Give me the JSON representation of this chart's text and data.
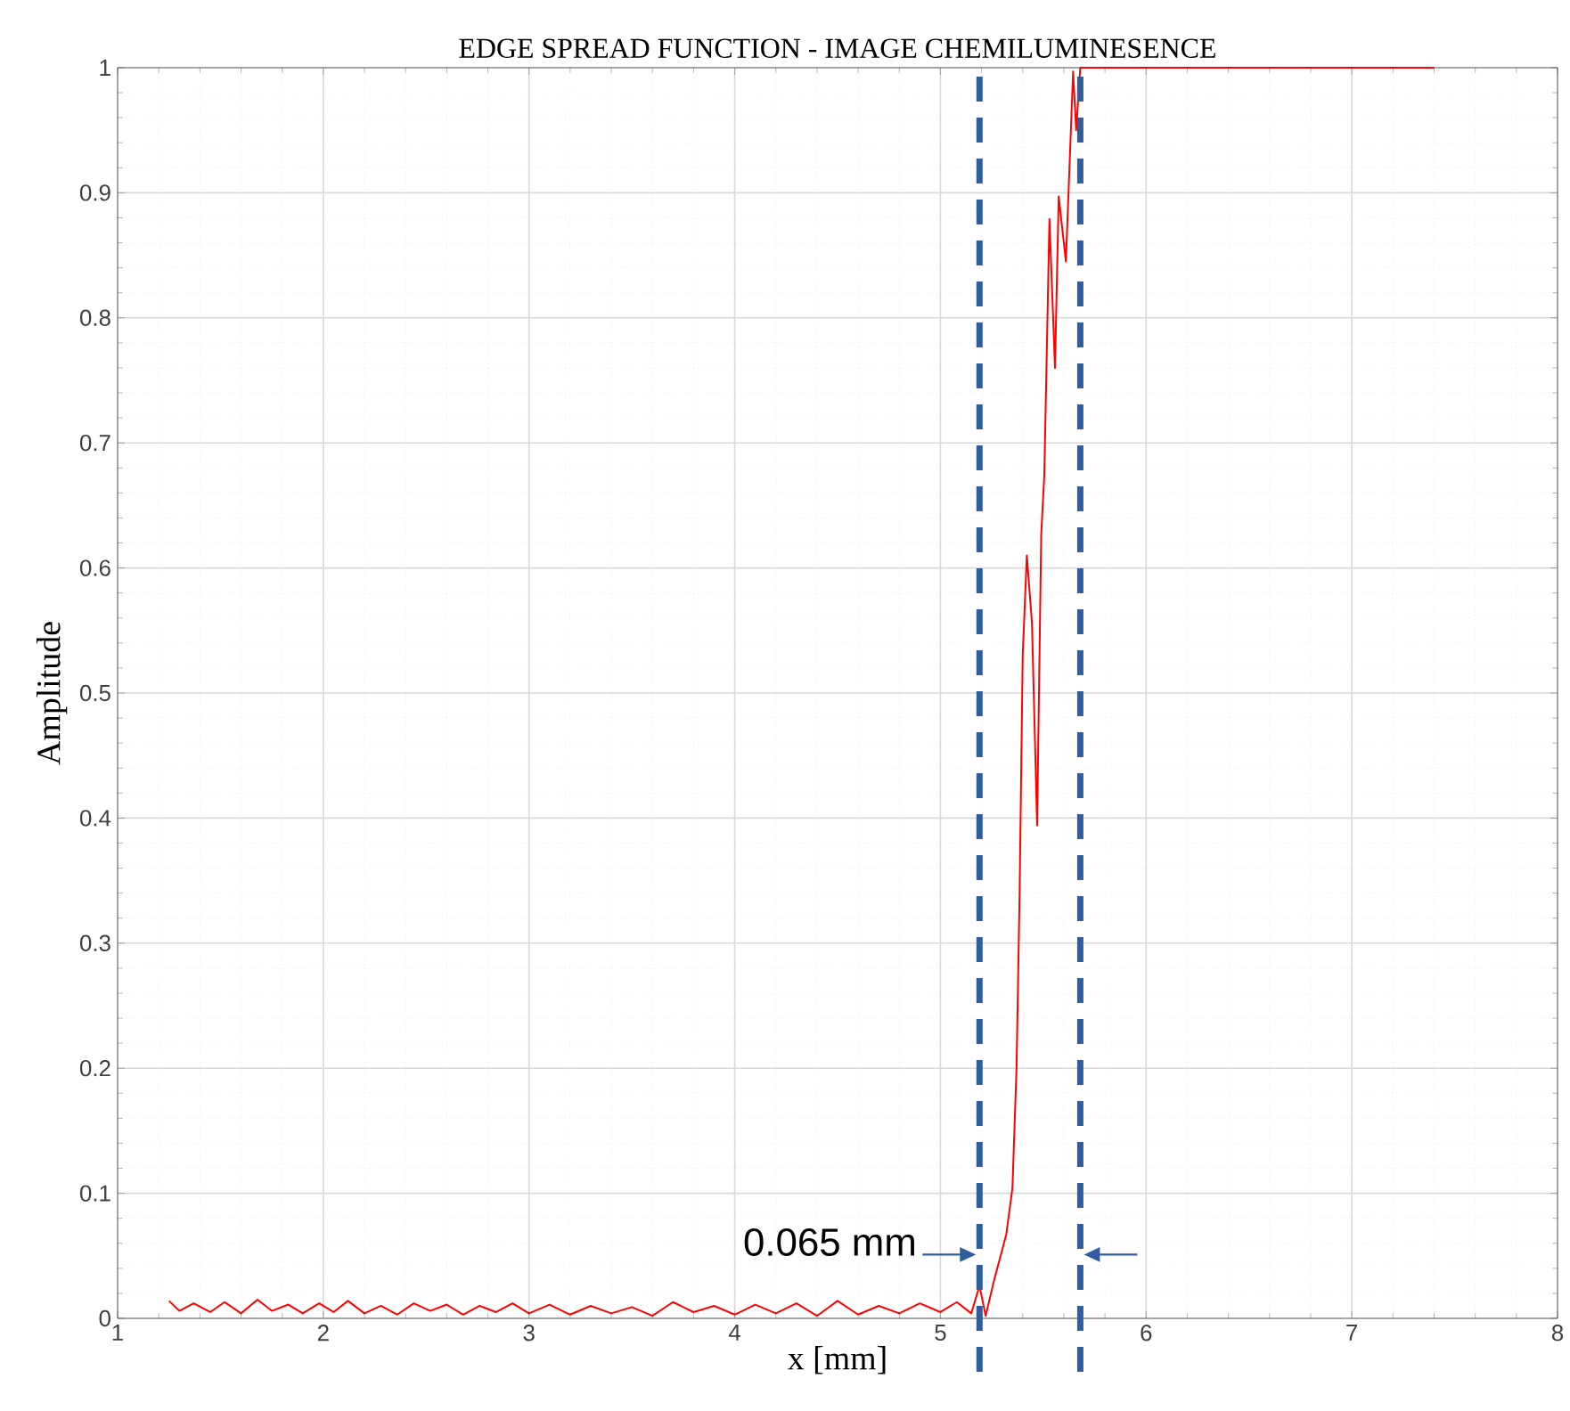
{
  "chart_data": {
    "type": "line",
    "title": "EDGE SPREAD FUNCTION - IMAGE CHEMILUMINESENCE",
    "xlabel": "x [mm]",
    "ylabel": "Amplitude",
    "xlim": [
      1,
      8
    ],
    "xticks": [
      1,
      2,
      3,
      4,
      5,
      6,
      7,
      8
    ],
    "ylim": [
      0,
      1
    ],
    "yticks": [
      0,
      0.1,
      0.2,
      0.3,
      0.4,
      0.5,
      0.6,
      0.7,
      0.8,
      0.9,
      1
    ],
    "grid": true,
    "marker": "none",
    "line_style": "solid",
    "series": [
      {
        "color": "#ff0000",
        "x": [
          1.25,
          1.3,
          1.37,
          1.45,
          1.52,
          1.6,
          1.68,
          1.75,
          1.83,
          1.9,
          1.98,
          2.05,
          2.12,
          2.2,
          2.28,
          2.36,
          2.44,
          2.52,
          2.6,
          2.68,
          2.76,
          2.84,
          2.92,
          3.0,
          3.1,
          3.2,
          3.3,
          3.4,
          3.5,
          3.6,
          3.7,
          3.8,
          3.9,
          4.0,
          4.1,
          4.2,
          4.3,
          4.4,
          4.5,
          4.6,
          4.7,
          4.8,
          4.9,
          5.0,
          5.08,
          5.15,
          5.19,
          5.22,
          5.26,
          5.32,
          5.35,
          5.37,
          5.385,
          5.4,
          5.42,
          5.445,
          5.47,
          5.49,
          5.505,
          5.53,
          5.557,
          5.575,
          5.61,
          5.645,
          5.66,
          5.68,
          6.0,
          7.0,
          7.4
        ],
        "values": [
          0.014,
          0.006,
          0.012,
          0.005,
          0.013,
          0.004,
          0.015,
          0.006,
          0.011,
          0.004,
          0.012,
          0.005,
          0.014,
          0.004,
          0.01,
          0.003,
          0.012,
          0.006,
          0.011,
          0.003,
          0.01,
          0.005,
          0.012,
          0.004,
          0.011,
          0.003,
          0.01,
          0.004,
          0.009,
          0.002,
          0.013,
          0.005,
          0.01,
          0.003,
          0.011,
          0.004,
          0.012,
          0.002,
          0.014,
          0.003,
          0.01,
          0.004,
          0.012,
          0.005,
          0.013,
          0.004,
          0.026,
          0.002,
          0.03,
          0.067,
          0.104,
          0.2,
          0.34,
          0.53,
          0.61,
          0.556,
          0.394,
          0.627,
          0.674,
          0.879,
          0.76,
          0.897,
          0.845,
          0.997,
          0.95,
          1,
          1,
          1,
          1
        ]
      }
    ],
    "ref_lines": [
      {
        "axis": "x",
        "value": 5.19,
        "color": "#2e5e9e",
        "line_style": "dashed"
      },
      {
        "axis": "x",
        "value": 5.68,
        "color": "#2e5e9e",
        "line_style": "dashed"
      }
    ],
    "annotations": [
      {
        "text": "0.065 mm",
        "x": 5.19,
        "y": 0.051
      }
    ]
  }
}
